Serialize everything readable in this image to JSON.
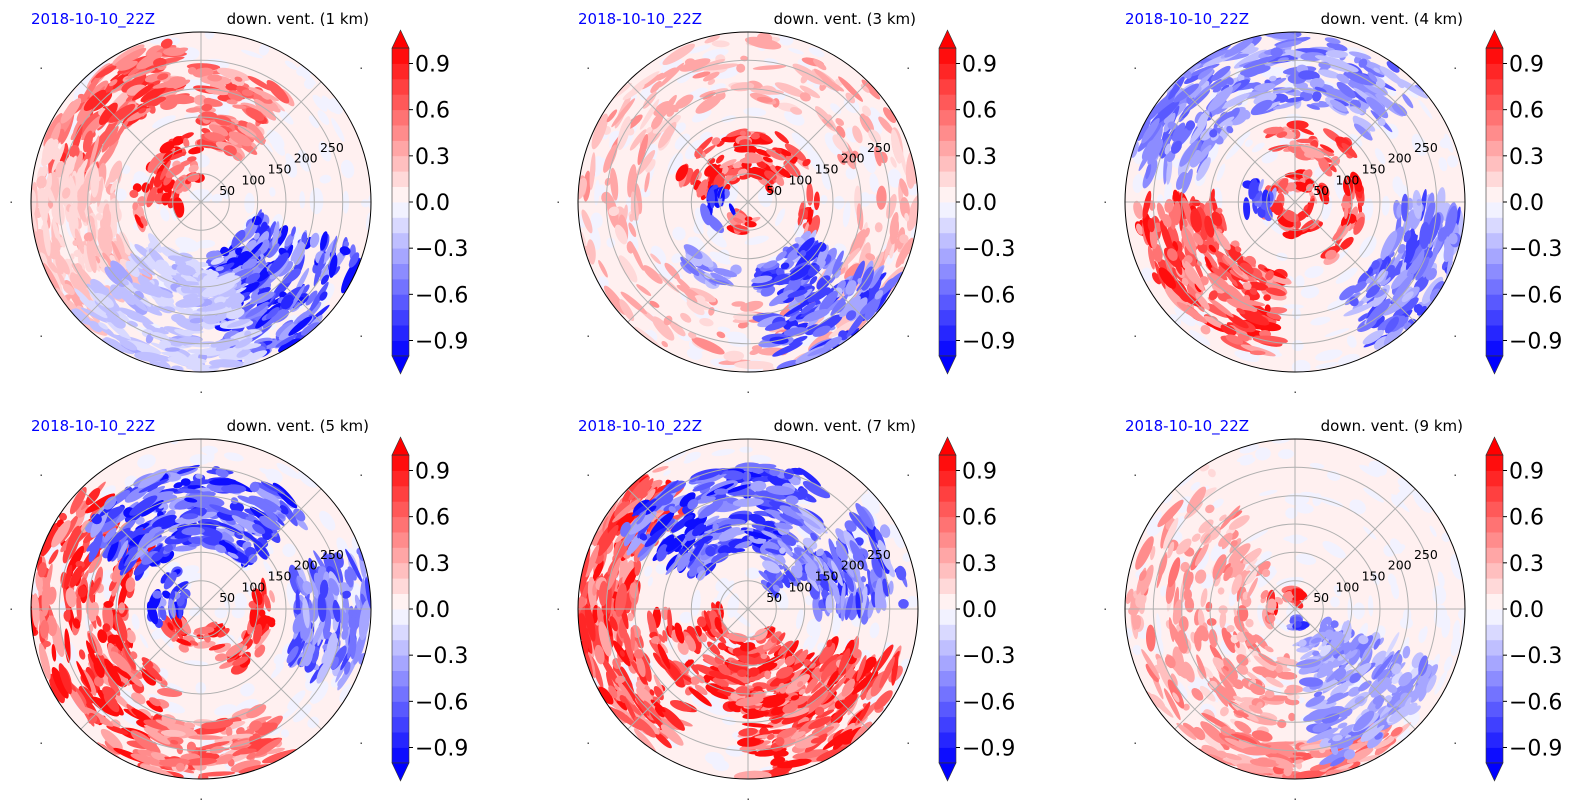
{
  "figure": {
    "rows": 2,
    "cols": 3
  },
  "chart_data": [
    {
      "type": "heatmap",
      "projection": "polar",
      "title_left": "2018-10-10_22Z",
      "title_right": "down. vent. (1 km)",
      "radial_ticks": [
        50,
        100,
        150,
        200,
        250
      ],
      "radial_max": 300,
      "radial_tick_labels": [
        "50",
        "100",
        "150",
        "200",
        "250"
      ],
      "angular_grid_deg": [
        0,
        45,
        90,
        135,
        180,
        225,
        270,
        315
      ],
      "features": [
        {
          "sign": 1,
          "strength": 1.0,
          "desc": "strong positive arc NW of center",
          "theta_deg": [
            95,
            200
          ],
          "r": [
            40,
            120
          ]
        },
        {
          "sign": 1,
          "strength": 0.8,
          "desc": "positive bands far NW",
          "theta_deg": [
            100,
            170
          ],
          "r": [
            180,
            290
          ]
        },
        {
          "sign": 1,
          "strength": 0.7,
          "desc": "positive cells north-northeast",
          "theta_deg": [
            50,
            95
          ],
          "r": [
            100,
            240
          ]
        },
        {
          "sign": 1,
          "strength": 0.3,
          "desc": "weak positive west",
          "theta_deg": [
            160,
            230
          ],
          "r": [
            150,
            300
          ]
        },
        {
          "sign": -1,
          "strength": 0.9,
          "desc": "negative streaks SE",
          "theta_deg": [
            280,
            345
          ],
          "r": [
            90,
            300
          ]
        },
        {
          "sign": -1,
          "strength": 0.3,
          "desc": "weak negative south",
          "theta_deg": [
            220,
            290
          ],
          "r": [
            100,
            300
          ]
        }
      ]
    },
    {
      "type": "heatmap",
      "projection": "polar",
      "title_left": "2018-10-10_22Z",
      "title_right": "down. vent. (3 km)",
      "radial_ticks": [
        50,
        100,
        150,
        200,
        250
      ],
      "radial_max": 300,
      "radial_tick_labels": [
        "50",
        "100",
        "150",
        "200",
        "250"
      ],
      "angular_grid_deg": [
        0,
        45,
        90,
        135,
        180,
        225,
        270,
        315
      ],
      "features": [
        {
          "sign": 1,
          "strength": 1.0,
          "desc": "strong positive arc N of center",
          "theta_deg": [
            30,
            170
          ],
          "r": [
            40,
            130
          ]
        },
        {
          "sign": 1,
          "strength": 1.0,
          "desc": "strong positive east eyewall",
          "theta_deg": [
            320,
            370
          ],
          "r": [
            95,
            125
          ]
        },
        {
          "sign": 1,
          "strength": 0.9,
          "desc": "positive arc SW of center",
          "theta_deg": [
            220,
            290
          ],
          "r": [
            25,
            55
          ]
        },
        {
          "sign": 1,
          "strength": 0.4,
          "desc": "weak positive outer ring",
          "theta_deg": [
            0,
            360
          ],
          "r": [
            180,
            300
          ]
        },
        {
          "sign": -1,
          "strength": 1.0,
          "desc": "negative W of center",
          "theta_deg": [
            160,
            220
          ],
          "r": [
            30,
            80
          ]
        },
        {
          "sign": -1,
          "strength": 0.8,
          "desc": "negative streaks SE",
          "theta_deg": [
            280,
            330
          ],
          "r": [
            110,
            300
          ]
        },
        {
          "sign": -1,
          "strength": 0.5,
          "desc": "negative band south",
          "theta_deg": [
            220,
            260
          ],
          "r": [
            120,
            160
          ]
        }
      ]
    },
    {
      "type": "heatmap",
      "projection": "polar",
      "title_left": "2018-10-10_22Z",
      "title_right": "down. vent. (4 km)",
      "radial_ticks": [
        50,
        100,
        150,
        200,
        250
      ],
      "radial_max": 300,
      "radial_tick_labels": [
        "50",
        "100",
        "150",
        "200",
        "250"
      ],
      "angular_grid_deg": [
        0,
        45,
        90,
        135,
        180,
        225,
        270,
        315
      ],
      "features": [
        {
          "sign": 1,
          "strength": 1.0,
          "desc": "positive ring around center",
          "theta_deg": [
            0,
            360
          ],
          "r": [
            25,
            60
          ]
        },
        {
          "sign": 1,
          "strength": 1.0,
          "desc": "strong positive east eyewall",
          "theta_deg": [
            300,
            380
          ],
          "r": [
            90,
            125
          ]
        },
        {
          "sign": 1,
          "strength": 0.9,
          "desc": "positive bands SW",
          "theta_deg": [
            180,
            260
          ],
          "r": [
            130,
            280
          ]
        },
        {
          "sign": 1,
          "strength": 0.8,
          "desc": "positive cells N",
          "theta_deg": [
            40,
            110
          ],
          "r": [
            80,
            140
          ]
        },
        {
          "sign": -1,
          "strength": 0.9,
          "desc": "negative W of center",
          "theta_deg": [
            150,
            210
          ],
          "r": [
            40,
            90
          ]
        },
        {
          "sign": -1,
          "strength": 0.6,
          "desc": "negative outer N-NW",
          "theta_deg": [
            40,
            170
          ],
          "r": [
            170,
            300
          ]
        },
        {
          "sign": -1,
          "strength": 0.7,
          "desc": "negative outer E-SE",
          "theta_deg": [
            300,
            360
          ],
          "r": [
            180,
            300
          ]
        }
      ]
    },
    {
      "type": "heatmap",
      "projection": "polar",
      "title_left": "2018-10-10_22Z",
      "title_right": "down. vent. (5 km)",
      "radial_ticks": [
        50,
        100,
        150,
        200,
        250
      ],
      "radial_max": 300,
      "radial_tick_labels": [
        "50",
        "100",
        "150",
        "200",
        "250"
      ],
      "angular_grid_deg": [
        0,
        45,
        90,
        135,
        180,
        225,
        270,
        315
      ],
      "features": [
        {
          "sign": 1,
          "strength": 1.0,
          "desc": "positive arc S of center",
          "theta_deg": [
            200,
            320
          ],
          "r": [
            30,
            80
          ]
        },
        {
          "sign": 1,
          "strength": 1.0,
          "desc": "strong positive east eyewall",
          "theta_deg": [
            290,
            380
          ],
          "r": [
            90,
            130
          ]
        },
        {
          "sign": 1,
          "strength": 0.9,
          "desc": "positive bands W-SW",
          "theta_deg": [
            130,
            250
          ],
          "r": [
            130,
            300
          ]
        },
        {
          "sign": 1,
          "strength": 0.7,
          "desc": "positive streaks S",
          "theta_deg": [
            250,
            300
          ],
          "r": [
            200,
            300
          ]
        },
        {
          "sign": -1,
          "strength": 1.0,
          "desc": "negative arc NW of center",
          "theta_deg": [
            120,
            200
          ],
          "r": [
            30,
            90
          ]
        },
        {
          "sign": -1,
          "strength": 0.9,
          "desc": "negative band N",
          "theta_deg": [
            40,
            150
          ],
          "r": [
            110,
            250
          ]
        },
        {
          "sign": -1,
          "strength": 0.7,
          "desc": "negative outer E",
          "theta_deg": [
            330,
            380
          ],
          "r": [
            170,
            300
          ]
        }
      ]
    },
    {
      "type": "heatmap",
      "projection": "polar",
      "title_left": "2018-10-10_22Z",
      "title_right": "down. vent. (7 km)",
      "radial_ticks": [
        50,
        100,
        150,
        200,
        250
      ],
      "radial_max": 300,
      "radial_tick_labels": [
        "50",
        "100",
        "150",
        "200",
        "250"
      ],
      "angular_grid_deg": [
        0,
        45,
        90,
        135,
        180,
        225,
        270,
        315
      ],
      "features": [
        {
          "sign": 1,
          "strength": 1.0,
          "desc": "positive spiral S-SW",
          "theta_deg": [
            180,
            320
          ],
          "r": [
            50,
            180
          ]
        },
        {
          "sign": 1,
          "strength": 0.9,
          "desc": "positive bands W",
          "theta_deg": [
            120,
            240
          ],
          "r": [
            200,
            300
          ]
        },
        {
          "sign": 1,
          "strength": 0.9,
          "desc": "positive SE outer",
          "theta_deg": [
            270,
            340
          ],
          "r": [
            150,
            300
          ]
        },
        {
          "sign": -1,
          "strength": 0.9,
          "desc": "negative streaks N",
          "theta_deg": [
            60,
            150
          ],
          "r": [
            100,
            260
          ]
        },
        {
          "sign": -1,
          "strength": 0.8,
          "desc": "negative E",
          "theta_deg": [
            0,
            40
          ],
          "r": [
            120,
            280
          ]
        },
        {
          "sign": -1,
          "strength": 0.7,
          "desc": "negative NE cells",
          "theta_deg": [
            30,
            70
          ],
          "r": [
            50,
            200
          ]
        }
      ]
    },
    {
      "type": "heatmap",
      "projection": "polar",
      "title_left": "2018-10-10_22Z",
      "title_right": "down. vent. (9 km)",
      "radial_ticks": [
        50,
        100,
        150,
        200,
        250
      ],
      "radial_max": 300,
      "radial_tick_labels": [
        "50",
        "100",
        "150",
        "200",
        "250"
      ],
      "angular_grid_deg": [
        0,
        45,
        90,
        135,
        180,
        225,
        270,
        315
      ],
      "features": [
        {
          "sign": 1,
          "strength": 0.9,
          "desc": "positive arc W of center",
          "theta_deg": [
            150,
            220
          ],
          "r": [
            30,
            60
          ]
        },
        {
          "sign": 1,
          "strength": 0.9,
          "desc": "positive cells N of center",
          "theta_deg": [
            50,
            120
          ],
          "r": [
            10,
            35
          ]
        },
        {
          "sign": 1,
          "strength": 0.5,
          "desc": "weak positive bands W-SW",
          "theta_deg": [
            120,
            270
          ],
          "r": [
            80,
            300
          ]
        },
        {
          "sign": 1,
          "strength": 0.6,
          "desc": "positive streaks S outer",
          "theta_deg": [
            240,
            310
          ],
          "r": [
            240,
            300
          ]
        },
        {
          "sign": -1,
          "strength": 0.9,
          "desc": "negative S of center",
          "theta_deg": [
            260,
            300
          ],
          "r": [
            15,
            35
          ]
        },
        {
          "sign": -1,
          "strength": 0.5,
          "desc": "weak negative SE",
          "theta_deg": [
            280,
            340
          ],
          "r": [
            60,
            280
          ]
        }
      ]
    }
  ],
  "colorbar": {
    "vmin": -1.0,
    "vmax": 1.0,
    "levels": 20,
    "extend": "both",
    "tick_values": [
      0.9,
      0.6,
      0.3,
      0.0,
      -0.3,
      -0.6,
      -0.9
    ],
    "tick_labels": [
      "0.9",
      "0.6",
      "0.3",
      "0.0",
      "−0.3",
      "−0.6",
      "−0.9"
    ],
    "cmap": "bwr",
    "color_low": "#0000ff",
    "color_mid": "#ffffff",
    "color_high": "#ff0000"
  },
  "colors": {
    "title_left": "#0000ff",
    "title_right": "#000000",
    "grid": "#b0b0b0"
  }
}
